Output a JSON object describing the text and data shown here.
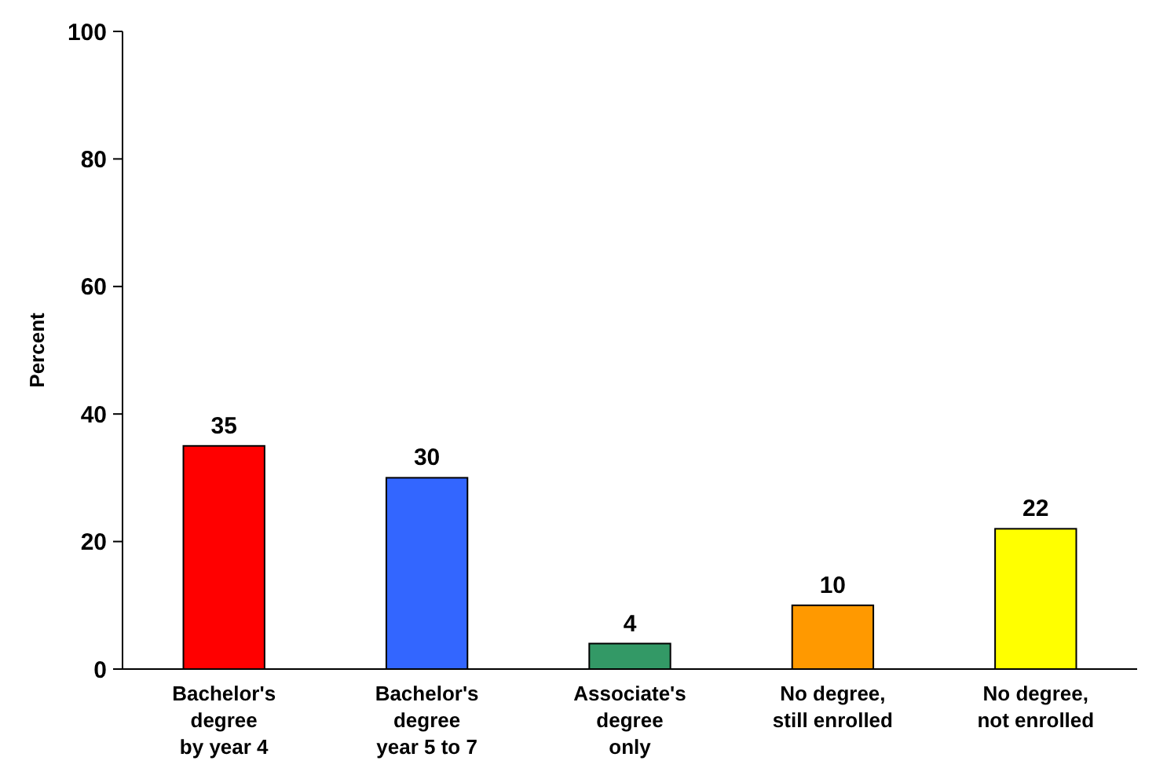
{
  "chart_data": {
    "type": "bar",
    "ylabel": "Percent",
    "categories": [
      "Bachelor's\ndegree\nby year 4",
      "Bachelor's\ndegree\nyear 5 to 7",
      "Associate's\ndegree\nonly",
      "No degree,\nstill enrolled",
      "No degree,\nnot enrolled"
    ],
    "values": [
      35,
      30,
      4,
      10,
      22
    ],
    "colors": [
      "#ff0000",
      "#3366ff",
      "#339966",
      "#ff9900",
      "#ffff00"
    ],
    "ylim": [
      0,
      100
    ],
    "yticks": [
      0,
      20,
      40,
      60,
      80,
      100
    ],
    "data_labels": true,
    "grid": false
  }
}
